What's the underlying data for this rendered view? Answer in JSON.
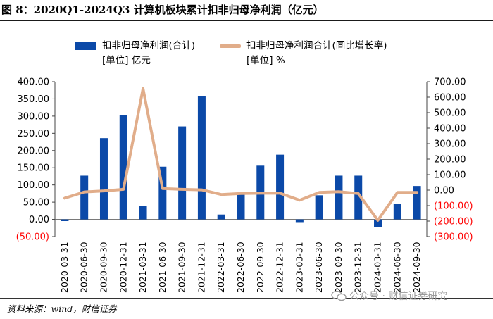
{
  "title": "图 8：2020Q1-2024Q3 计算机板块累计扣非归母净利润（亿元）",
  "source": "资料来源：wind，财信证券",
  "watermark": "公众号 · 财信证券研究",
  "colors": {
    "bar": "#0b49a8",
    "line": "#e1ad8a",
    "negative_tick": "#ff0000"
  },
  "legend": {
    "bar_label_1": "扣非归母净利润(合计)",
    "bar_label_2": "[单位] 亿元",
    "line_label_1": "扣非归母净利润合计(同比增长率)",
    "line_label_2": "[单位] %"
  },
  "chart_data": {
    "type": "bar",
    "title": "2020Q1-2024Q3 计算机板块累计扣非归母净利润（亿元）",
    "categories": [
      "2020-03-31",
      "2020-06-30",
      "2020-09-30",
      "2020-12-31",
      "2021-03-31",
      "2021-06-30",
      "2021-09-30",
      "2021-12-31",
      "2022-03-31",
      "2022-06-30",
      "2022-09-30",
      "2022-12-31",
      "2023-03-31",
      "2023-06-30",
      "2023-09-30",
      "2023-12-31",
      "2024-03-31",
      "2024-06-30",
      "2024-09-30"
    ],
    "series": [
      {
        "name": "扣非归母净利润(合计)",
        "unit": "亿元",
        "type": "bar",
        "axis": "left",
        "values": [
          -5,
          127,
          236,
          303,
          38,
          153,
          270,
          358,
          14,
          80,
          156,
          188,
          -8,
          70,
          127,
          127,
          -22,
          45,
          97
        ]
      },
      {
        "name": "扣非归母净利润合计(同比增长率)",
        "unit": "%",
        "type": "line",
        "axis": "right",
        "values": [
          -52,
          -12,
          -5,
          5,
          655,
          10,
          5,
          2,
          -28,
          -22,
          -20,
          -20,
          -65,
          -15,
          -10,
          -22,
          -195,
          -15,
          -15
        ]
      }
    ],
    "y_left": {
      "min": -50,
      "max": 400,
      "step": 50,
      "tick_labels": [
        "(50.00)",
        "0.00",
        "50.00",
        "100.00",
        "150.00",
        "200.00",
        "250.00",
        "300.00",
        "350.00",
        "400.00"
      ]
    },
    "y_right": {
      "min": -300,
      "max": 700,
      "step": 100,
      "tick_labels": [
        "(300.00)",
        "(200.00)",
        "(100.00)",
        "0.00",
        "100.00",
        "200.00",
        "300.00",
        "400.00",
        "500.00",
        "600.00",
        "700.00"
      ]
    },
    "legend_position": "top"
  }
}
